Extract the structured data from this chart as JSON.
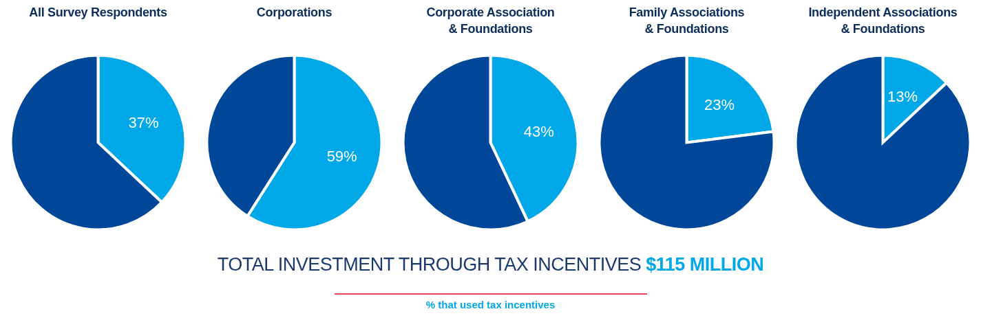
{
  "chart_data": [
    {
      "type": "pie",
      "title": "All Survey Respondents",
      "categories": [
        null,
        null
      ],
      "values": [
        37,
        63
      ],
      "colors": [
        "#00a8e8",
        "#004799"
      ],
      "value_labels": [
        "37%",
        null
      ]
    },
    {
      "type": "pie",
      "title": "Corporations",
      "categories": [
        null,
        null
      ],
      "values": [
        59,
        41
      ],
      "colors": [
        "#00a8e8",
        "#004799"
      ],
      "value_labels": [
        "59%",
        null
      ]
    },
    {
      "type": "pie",
      "title": "Corporate Association\n& Foundations",
      "categories": [
        null,
        null
      ],
      "values": [
        43,
        57
      ],
      "colors": [
        "#00a8e8",
        "#004799"
      ],
      "value_labels": [
        "43%",
        null
      ]
    },
    {
      "type": "pie",
      "title": "Family Associations\n& Foundations",
      "categories": [
        null,
        null
      ],
      "values": [
        23,
        77
      ],
      "colors": [
        "#00a8e8",
        "#004799"
      ],
      "value_labels": [
        "23%",
        null
      ]
    },
    {
      "type": "pie",
      "title": "Independent Associations\n& Foundations",
      "categories": [
        null,
        null
      ],
      "values": [
        13,
        87
      ],
      "colors": [
        "#00a8e8",
        "#004799"
      ],
      "value_labels": [
        "13%",
        null
      ]
    },
    {
      "type": "other",
      "annotations": [
        "TOTAL INVESTMENT THROUGH TAX INCENTIVES",
        "$115 MILLION",
        "% that used tax incentives"
      ]
    }
  ]
}
